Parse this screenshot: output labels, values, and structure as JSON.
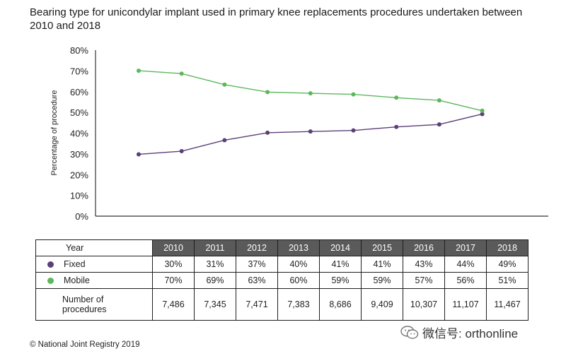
{
  "chart_data": {
    "type": "line",
    "title": "Bearing type for unicondylar implant used in primary knee replacements procedures undertaken between 2010 and 2018",
    "xlabel": "",
    "ylabel": "Percentage of procedure",
    "ylim": [
      0,
      80
    ],
    "yticks": [
      "0%",
      "10%",
      "20%",
      "30%",
      "40%",
      "50%",
      "60%",
      "70%",
      "80%"
    ],
    "grid": false,
    "x": [
      "2010",
      "2011",
      "2012",
      "2013",
      "2014",
      "2015",
      "2016",
      "2017",
      "2018"
    ],
    "series": [
      {
        "name": "Fixed",
        "color": "#5b3f78",
        "values": [
          29.8,
          31.3,
          36.6,
          40.2,
          40.8,
          41.3,
          43.0,
          44.2,
          49.2
        ]
      },
      {
        "name": "Mobile",
        "color": "#5cb85c",
        "values": [
          70.1,
          68.7,
          63.4,
          59.8,
          59.2,
          58.7,
          57.1,
          55.8,
          50.8
        ]
      }
    ]
  },
  "table": {
    "year_label": "Year",
    "years": [
      "2010",
      "2011",
      "2012",
      "2013",
      "2014",
      "2015",
      "2016",
      "2017",
      "2018"
    ],
    "fixed_label": "Fixed",
    "fixed": [
      "30%",
      "31%",
      "37%",
      "40%",
      "41%",
      "41%",
      "43%",
      "44%",
      "49%"
    ],
    "mobile_label": "Mobile",
    "mobile": [
      "70%",
      "69%",
      "63%",
      "60%",
      "59%",
      "59%",
      "57%",
      "56%",
      "51%"
    ],
    "procedures_label_line1": "Number of",
    "procedures_label_line2": "procedures",
    "procedures": [
      "7,486",
      "7,345",
      "7,471",
      "7,383",
      "8,686",
      "9,409",
      "10,307",
      "11,107",
      "11,467"
    ]
  },
  "footer": "© National Joint Registry 2019",
  "watermark": "微信号: orthonline",
  "colors": {
    "fixed": "#5b3f78",
    "mobile": "#5cb85c",
    "header_bg": "#5a5a5a"
  }
}
